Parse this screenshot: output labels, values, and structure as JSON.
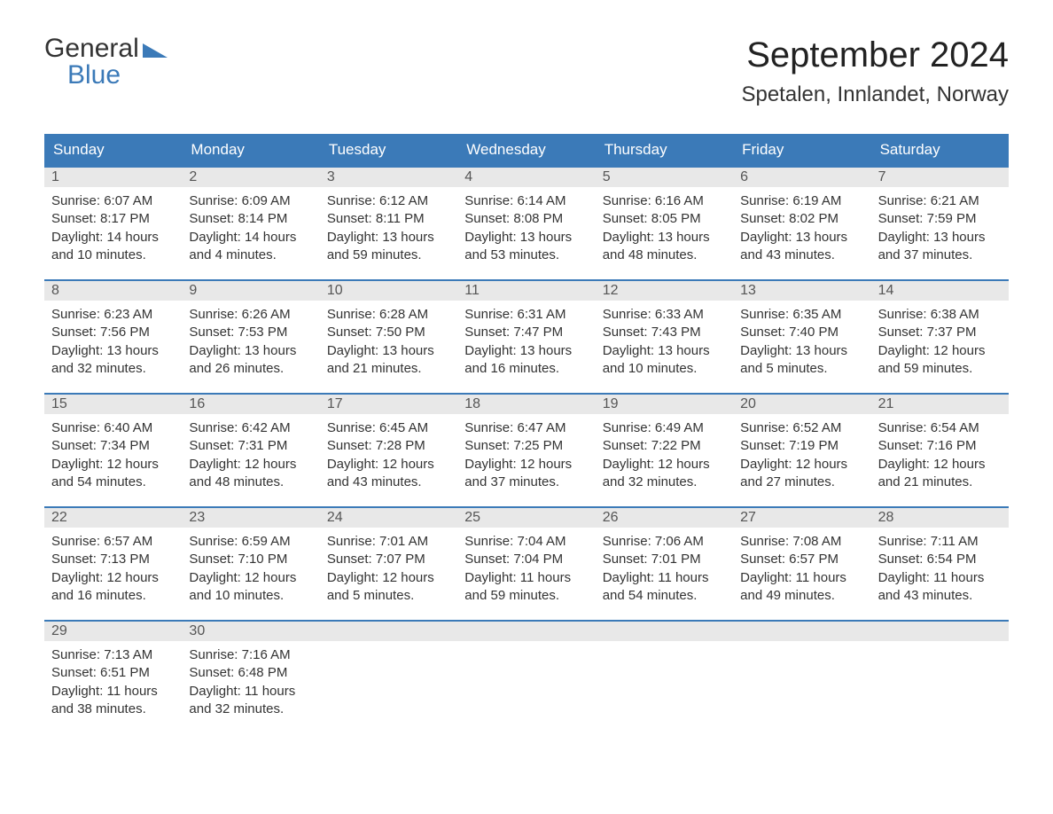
{
  "logo": {
    "text_general": "General",
    "text_blue": "Blue",
    "flag_color": "#3b7ab8"
  },
  "header": {
    "month_title": "September 2024",
    "location": "Spetalen, Innlandet, Norway"
  },
  "colors": {
    "header_bg": "#3b7ab8",
    "header_text": "#ffffff",
    "daybar_bg": "#e8e8e8",
    "daybar_border": "#3b7ab8",
    "body_text": "#333333",
    "page_bg": "#ffffff"
  },
  "weekdays": [
    "Sunday",
    "Monday",
    "Tuesday",
    "Wednesday",
    "Thursday",
    "Friday",
    "Saturday"
  ],
  "weeks": [
    [
      {
        "num": "1",
        "sunrise": "Sunrise: 6:07 AM",
        "sunset": "Sunset: 8:17 PM",
        "daylight1": "Daylight: 14 hours",
        "daylight2": "and 10 minutes."
      },
      {
        "num": "2",
        "sunrise": "Sunrise: 6:09 AM",
        "sunset": "Sunset: 8:14 PM",
        "daylight1": "Daylight: 14 hours",
        "daylight2": "and 4 minutes."
      },
      {
        "num": "3",
        "sunrise": "Sunrise: 6:12 AM",
        "sunset": "Sunset: 8:11 PM",
        "daylight1": "Daylight: 13 hours",
        "daylight2": "and 59 minutes."
      },
      {
        "num": "4",
        "sunrise": "Sunrise: 6:14 AM",
        "sunset": "Sunset: 8:08 PM",
        "daylight1": "Daylight: 13 hours",
        "daylight2": "and 53 minutes."
      },
      {
        "num": "5",
        "sunrise": "Sunrise: 6:16 AM",
        "sunset": "Sunset: 8:05 PM",
        "daylight1": "Daylight: 13 hours",
        "daylight2": "and 48 minutes."
      },
      {
        "num": "6",
        "sunrise": "Sunrise: 6:19 AM",
        "sunset": "Sunset: 8:02 PM",
        "daylight1": "Daylight: 13 hours",
        "daylight2": "and 43 minutes."
      },
      {
        "num": "7",
        "sunrise": "Sunrise: 6:21 AM",
        "sunset": "Sunset: 7:59 PM",
        "daylight1": "Daylight: 13 hours",
        "daylight2": "and 37 minutes."
      }
    ],
    [
      {
        "num": "8",
        "sunrise": "Sunrise: 6:23 AM",
        "sunset": "Sunset: 7:56 PM",
        "daylight1": "Daylight: 13 hours",
        "daylight2": "and 32 minutes."
      },
      {
        "num": "9",
        "sunrise": "Sunrise: 6:26 AM",
        "sunset": "Sunset: 7:53 PM",
        "daylight1": "Daylight: 13 hours",
        "daylight2": "and 26 minutes."
      },
      {
        "num": "10",
        "sunrise": "Sunrise: 6:28 AM",
        "sunset": "Sunset: 7:50 PM",
        "daylight1": "Daylight: 13 hours",
        "daylight2": "and 21 minutes."
      },
      {
        "num": "11",
        "sunrise": "Sunrise: 6:31 AM",
        "sunset": "Sunset: 7:47 PM",
        "daylight1": "Daylight: 13 hours",
        "daylight2": "and 16 minutes."
      },
      {
        "num": "12",
        "sunrise": "Sunrise: 6:33 AM",
        "sunset": "Sunset: 7:43 PM",
        "daylight1": "Daylight: 13 hours",
        "daylight2": "and 10 minutes."
      },
      {
        "num": "13",
        "sunrise": "Sunrise: 6:35 AM",
        "sunset": "Sunset: 7:40 PM",
        "daylight1": "Daylight: 13 hours",
        "daylight2": "and 5 minutes."
      },
      {
        "num": "14",
        "sunrise": "Sunrise: 6:38 AM",
        "sunset": "Sunset: 7:37 PM",
        "daylight1": "Daylight: 12 hours",
        "daylight2": "and 59 minutes."
      }
    ],
    [
      {
        "num": "15",
        "sunrise": "Sunrise: 6:40 AM",
        "sunset": "Sunset: 7:34 PM",
        "daylight1": "Daylight: 12 hours",
        "daylight2": "and 54 minutes."
      },
      {
        "num": "16",
        "sunrise": "Sunrise: 6:42 AM",
        "sunset": "Sunset: 7:31 PM",
        "daylight1": "Daylight: 12 hours",
        "daylight2": "and 48 minutes."
      },
      {
        "num": "17",
        "sunrise": "Sunrise: 6:45 AM",
        "sunset": "Sunset: 7:28 PM",
        "daylight1": "Daylight: 12 hours",
        "daylight2": "and 43 minutes."
      },
      {
        "num": "18",
        "sunrise": "Sunrise: 6:47 AM",
        "sunset": "Sunset: 7:25 PM",
        "daylight1": "Daylight: 12 hours",
        "daylight2": "and 37 minutes."
      },
      {
        "num": "19",
        "sunrise": "Sunrise: 6:49 AM",
        "sunset": "Sunset: 7:22 PM",
        "daylight1": "Daylight: 12 hours",
        "daylight2": "and 32 minutes."
      },
      {
        "num": "20",
        "sunrise": "Sunrise: 6:52 AM",
        "sunset": "Sunset: 7:19 PM",
        "daylight1": "Daylight: 12 hours",
        "daylight2": "and 27 minutes."
      },
      {
        "num": "21",
        "sunrise": "Sunrise: 6:54 AM",
        "sunset": "Sunset: 7:16 PM",
        "daylight1": "Daylight: 12 hours",
        "daylight2": "and 21 minutes."
      }
    ],
    [
      {
        "num": "22",
        "sunrise": "Sunrise: 6:57 AM",
        "sunset": "Sunset: 7:13 PM",
        "daylight1": "Daylight: 12 hours",
        "daylight2": "and 16 minutes."
      },
      {
        "num": "23",
        "sunrise": "Sunrise: 6:59 AM",
        "sunset": "Sunset: 7:10 PM",
        "daylight1": "Daylight: 12 hours",
        "daylight2": "and 10 minutes."
      },
      {
        "num": "24",
        "sunrise": "Sunrise: 7:01 AM",
        "sunset": "Sunset: 7:07 PM",
        "daylight1": "Daylight: 12 hours",
        "daylight2": "and 5 minutes."
      },
      {
        "num": "25",
        "sunrise": "Sunrise: 7:04 AM",
        "sunset": "Sunset: 7:04 PM",
        "daylight1": "Daylight: 11 hours",
        "daylight2": "and 59 minutes."
      },
      {
        "num": "26",
        "sunrise": "Sunrise: 7:06 AM",
        "sunset": "Sunset: 7:01 PM",
        "daylight1": "Daylight: 11 hours",
        "daylight2": "and 54 minutes."
      },
      {
        "num": "27",
        "sunrise": "Sunrise: 7:08 AM",
        "sunset": "Sunset: 6:57 PM",
        "daylight1": "Daylight: 11 hours",
        "daylight2": "and 49 minutes."
      },
      {
        "num": "28",
        "sunrise": "Sunrise: 7:11 AM",
        "sunset": "Sunset: 6:54 PM",
        "daylight1": "Daylight: 11 hours",
        "daylight2": "and 43 minutes."
      }
    ],
    [
      {
        "num": "29",
        "sunrise": "Sunrise: 7:13 AM",
        "sunset": "Sunset: 6:51 PM",
        "daylight1": "Daylight: 11 hours",
        "daylight2": "and 38 minutes."
      },
      {
        "num": "30",
        "sunrise": "Sunrise: 7:16 AM",
        "sunset": "Sunset: 6:48 PM",
        "daylight1": "Daylight: 11 hours",
        "daylight2": "and 32 minutes."
      },
      {
        "empty": true
      },
      {
        "empty": true
      },
      {
        "empty": true
      },
      {
        "empty": true
      },
      {
        "empty": true
      }
    ]
  ]
}
